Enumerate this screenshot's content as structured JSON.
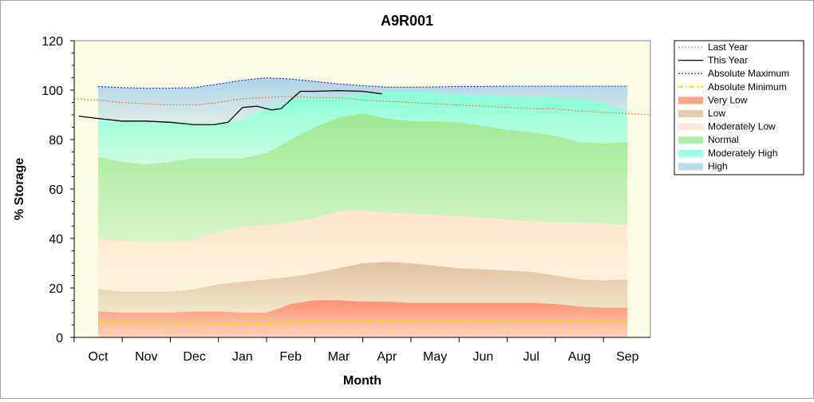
{
  "chart_data": {
    "type": "area",
    "title": "A9R001",
    "xlabel": "Month",
    "ylabel": "% Storage",
    "ylim": [
      0,
      120
    ],
    "yticks": [
      0,
      20,
      40,
      60,
      80,
      100,
      120
    ],
    "categories": [
      "Oct",
      "Nov",
      "Dec",
      "Jan",
      "Feb",
      "Mar",
      "Apr",
      "May",
      "Jun",
      "Jul",
      "Aug",
      "Sep"
    ],
    "band_x": [
      0.0,
      0.5,
      1.0,
      1.5,
      2.0,
      2.5,
      3.0,
      3.5,
      4.0,
      4.5,
      5.0,
      5.5,
      6.0,
      6.5,
      7.0,
      7.5,
      8.0,
      8.5,
      9.0,
      9.5,
      10.0,
      10.5,
      11.0
    ],
    "bands": [
      {
        "name": "Very Low",
        "lower": [
          0,
          0,
          0,
          0,
          0,
          0,
          0,
          0,
          0,
          0,
          0,
          0,
          0,
          0,
          0,
          0,
          0,
          0,
          0,
          0,
          0,
          0,
          0
        ],
        "upper": [
          10.5,
          10,
          10,
          10,
          10.5,
          10.5,
          10,
          10,
          13.5,
          15,
          15,
          14.5,
          14.5,
          14,
          14,
          14,
          14,
          14,
          14,
          13.5,
          12.5,
          12,
          12
        ],
        "color": "#ff8c69"
      },
      {
        "name": "Low",
        "upper": [
          19.5,
          18.5,
          18.5,
          18.5,
          19.5,
          21.5,
          22.5,
          23.5,
          24.5,
          26,
          28,
          30,
          30.5,
          30,
          29,
          28,
          27.5,
          27,
          26.5,
          25,
          23.5,
          23,
          23.5
        ],
        "color": "#dfbf9b"
      },
      {
        "name": "Moderately Low",
        "upper": [
          40,
          39,
          38.5,
          38.5,
          39.5,
          42.5,
          44.5,
          45.5,
          46.5,
          48,
          51,
          51.5,
          50.5,
          50,
          49.5,
          49,
          48.5,
          47.5,
          47,
          46.5,
          46.5,
          46,
          45.5
        ],
        "color": "#ffe4cc"
      },
      {
        "name": "Normal",
        "upper": [
          73,
          71,
          70,
          71,
          72.5,
          72.5,
          72.5,
          74.5,
          80,
          85,
          89,
          90.5,
          88.5,
          87.5,
          87.5,
          87,
          85.5,
          84,
          83,
          81.5,
          79,
          78.5,
          79
        ],
        "color": "#98e890"
      },
      {
        "name": "Moderately High",
        "upper": [
          88,
          87.5,
          87.5,
          87.5,
          87,
          87,
          88,
          93,
          96,
          97.5,
          97.5,
          98.5,
          99.5,
          99.5,
          99,
          98.5,
          98,
          97.5,
          97.5,
          97,
          96.5,
          95,
          91.5
        ],
        "color": "#80ffd8"
      },
      {
        "name": "High",
        "upper": [
          101.5,
          101,
          100.8,
          100.8,
          101,
          102.5,
          104,
          105,
          104.5,
          103.5,
          102.5,
          101.8,
          101.2,
          101.2,
          101.3,
          101.5,
          101.5,
          101.6,
          101.6,
          101.6,
          101.6,
          101.6,
          101.6
        ],
        "color": "#a8d0e8"
      }
    ],
    "series": [
      {
        "name": "Last Year",
        "color": "#e07a30",
        "style": "dotted",
        "x": [
          -0.5,
          0.0,
          0.5,
          1.0,
          1.5,
          2.0,
          2.5,
          3.0,
          3.5,
          4.0,
          4.5,
          5.0,
          5.5,
          6.0,
          6.5,
          7.0,
          7.5,
          8.0,
          8.5,
          9.0,
          9.5,
          10.0,
          10.5,
          11.0,
          11.5
        ],
        "y": [
          96.5,
          96,
          95,
          94.5,
          94,
          94,
          95,
          96.5,
          97,
          97.5,
          97,
          97,
          96,
          95.5,
          95,
          94.5,
          94,
          93.5,
          93,
          92.5,
          92.5,
          91.5,
          91,
          90.5,
          90
        ]
      },
      {
        "name": "This Year",
        "color": "#000000",
        "style": "solid",
        "x": [
          -0.4,
          0.0,
          0.5,
          1.0,
          1.5,
          2.0,
          2.4,
          2.7,
          3.0,
          3.3,
          3.6,
          3.8,
          4.0,
          4.2,
          4.5,
          5.0,
          5.5,
          5.9
        ],
        "y": [
          89.5,
          88.5,
          87.5,
          87.5,
          87,
          86,
          86,
          87,
          93,
          93.5,
          92,
          92.5,
          96,
          99.5,
          99.5,
          99.8,
          99.5,
          98.5
        ]
      },
      {
        "name": "Absolute Maximum",
        "color": "#1a1ad0",
        "style": "dotted",
        "x": [
          0.0,
          0.5,
          1.0,
          1.5,
          2.0,
          2.5,
          3.0,
          3.5,
          4.0,
          4.5,
          5.0,
          5.5,
          6.0,
          6.5,
          7.0,
          7.5,
          8.0,
          8.5,
          9.0,
          9.5,
          10.0,
          10.5,
          11.0
        ],
        "y": [
          101.5,
          101,
          100.8,
          100.8,
          101,
          102.5,
          104,
          105,
          104.5,
          103.5,
          102.5,
          101.8,
          101.2,
          101.2,
          101.3,
          101.5,
          101.5,
          101.6,
          101.6,
          101.6,
          101.6,
          101.6,
          101.6
        ]
      },
      {
        "name": "Absolute Minimum",
        "color": "#e6e600",
        "style": "dashdot",
        "x": [
          0.0,
          0.5,
          1.0,
          1.5,
          2.0,
          2.5,
          3.0,
          3.5,
          4.0,
          4.5,
          5.0,
          5.5,
          6.0,
          6.5,
          7.0,
          7.5,
          8.0,
          8.5,
          9.0,
          9.5,
          10.0,
          10.5,
          11.0
        ],
        "y": [
          6,
          6,
          5.8,
          5.5,
          5.5,
          5.5,
          5.2,
          5.5,
          6,
          6.5,
          6.5,
          6.5,
          6.5,
          6.5,
          6.5,
          6.5,
          6.5,
          6.5,
          6.5,
          6.5,
          6.5,
          6.5,
          6.5
        ]
      }
    ],
    "legend": {
      "placement": "right",
      "entries": [
        {
          "label": "Last Year",
          "kind": "line",
          "color": "#e07a30",
          "style": "dotted"
        },
        {
          "label": "This Year",
          "kind": "line",
          "color": "#000000",
          "style": "solid"
        },
        {
          "label": "Absolute Maximum",
          "kind": "line",
          "color": "#1a1ad0",
          "style": "dotted"
        },
        {
          "label": "Absolute Minimum",
          "kind": "line",
          "color": "#e6e600",
          "style": "dashdot"
        },
        {
          "label": "Very Low",
          "kind": "area",
          "color": "#ff8c69"
        },
        {
          "label": "Low",
          "kind": "area",
          "color": "#dfbf9b"
        },
        {
          "label": "Moderately Low",
          "kind": "area",
          "color": "#ffe4cc"
        },
        {
          "label": "Normal",
          "kind": "area",
          "color": "#98e890"
        },
        {
          "label": "Moderately High",
          "kind": "area",
          "color": "#80ffd8"
        },
        {
          "label": "High",
          "kind": "area",
          "color": "#a8d0e8"
        }
      ]
    },
    "plot_background": "#fbfbe6",
    "grid": false
  }
}
